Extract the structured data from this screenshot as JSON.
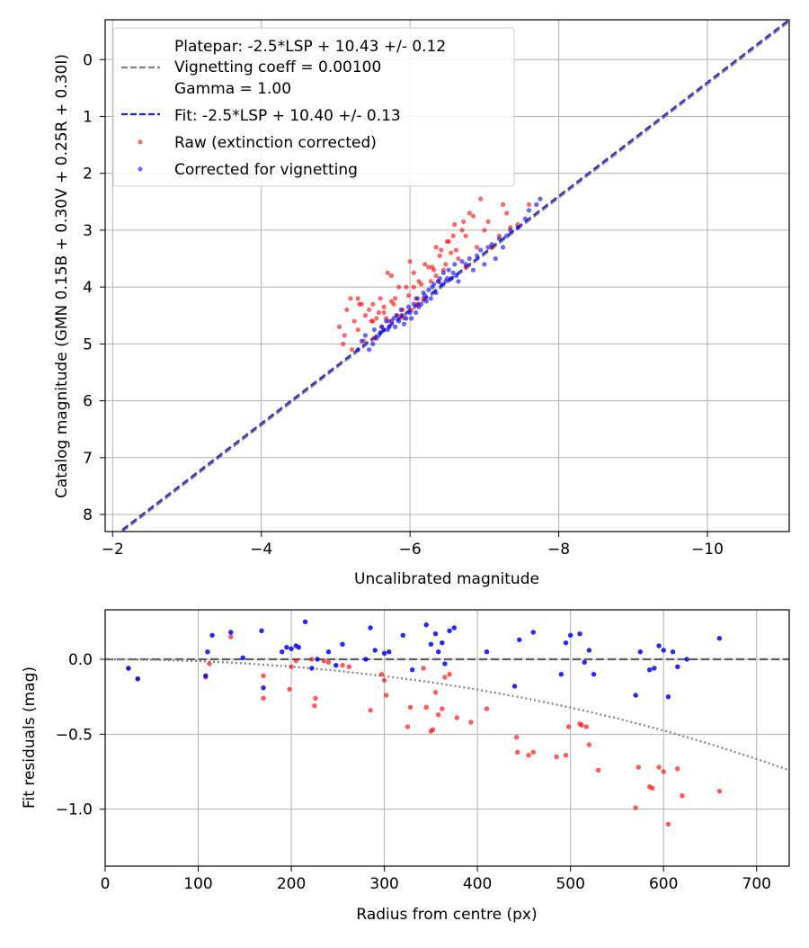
{
  "colors": {
    "raw": "#ff0000",
    "corrected": "#0000ff",
    "fit_line": "#2222cc",
    "platepar_line": "#808080",
    "grid": "#b0b0b0",
    "zero_line": "#404040",
    "trend": "#808080"
  },
  "chart_data": [
    {
      "type": "scatter",
      "title": "",
      "xlabel": "Uncalibrated magnitude",
      "ylabel": "Catalog magnitude (GMN 0.15B + 0.30V + 0.25R + 0.30I)",
      "xlim": [
        -1.9,
        -11.1
      ],
      "ylim": [
        8.3,
        -0.7
      ],
      "x_inverted": true,
      "y_inverted": true,
      "xticks": [
        -2,
        -4,
        -6,
        -8,
        -10
      ],
      "xtick_labels": [
        "−2",
        "−4",
        "−6",
        "−8",
        "−10"
      ],
      "yticks": [
        0,
        1,
        2,
        3,
        4,
        5,
        6,
        7,
        8
      ],
      "ytick_labels": [
        "0",
        "1",
        "2",
        "3",
        "4",
        "5",
        "6",
        "7",
        "8"
      ],
      "grid": true,
      "legend_position": "top-left",
      "legend": [
        {
          "label": "Platepar: -2.5*LSP + 10.43 +/- 0.12",
          "style": "none"
        },
        {
          "label": "Vignetting coeff = 0.00100",
          "style": "dashed-gray"
        },
        {
          "label": "Gamma = 1.00",
          "style": "none"
        },
        {
          "label": "Fit: -2.5*LSP + 10.40 +/- 0.13",
          "style": "dashed-blue"
        },
        {
          "label": "Raw (extinction corrected)",
          "style": "marker-red"
        },
        {
          "label": "Corrected for vignetting",
          "style": "marker-blue"
        }
      ],
      "lines": [
        {
          "name": "Platepar",
          "slope": 1.0,
          "intercept": 10.43
        },
        {
          "name": "Fit",
          "slope": 1.0,
          "intercept": 10.4
        }
      ],
      "series": [
        {
          "name": "Raw (extinction corrected)",
          "x": [
            -5.05,
            -5.1,
            -5.12,
            -5.15,
            -5.2,
            -5.22,
            -5.25,
            -5.3,
            -5.32,
            -5.35,
            -5.38,
            -5.4,
            -5.45,
            -5.48,
            -5.5,
            -5.52,
            -5.55,
            -5.58,
            -5.6,
            -5.62,
            -5.65,
            -5.68,
            -5.7,
            -5.72,
            -5.75,
            -5.78,
            -5.8,
            -5.82,
            -5.85,
            -5.88,
            -5.9,
            -5.92,
            -5.95,
            -5.98,
            -6.0,
            -6.02,
            -6.05,
            -6.08,
            -6.1,
            -6.12,
            -6.15,
            -6.18,
            -6.2,
            -6.25,
            -6.28,
            -6.3,
            -6.32,
            -6.35,
            -6.38,
            -6.4,
            -6.42,
            -6.45,
            -6.48,
            -6.5,
            -6.52,
            -6.55,
            -6.58,
            -6.6,
            -6.62,
            -6.65,
            -6.7,
            -6.72,
            -6.75,
            -6.8,
            -6.85,
            -6.9,
            -6.95,
            -7.0,
            -7.05,
            -7.1,
            -7.2,
            -7.25,
            -7.3,
            -7.35,
            -7.45,
            -7.6,
            -5.3,
            -5.5,
            -5.65,
            -5.75,
            -6.05,
            -6.35,
            -6.75
          ],
          "y": [
            4.7,
            5.0,
            4.85,
            4.4,
            4.2,
            5.1,
            4.6,
            4.75,
            4.3,
            4.3,
            4.95,
            4.5,
            4.4,
            4.6,
            4.3,
            4.9,
            4.55,
            4.45,
            4.2,
            4.7,
            4.45,
            4.55,
            3.75,
            4.6,
            3.8,
            4.3,
            4.2,
            4.5,
            4.0,
            4.5,
            4.4,
            4.55,
            4.0,
            4.15,
            3.55,
            4.4,
            4.0,
            4.2,
            4.3,
            3.9,
            3.95,
            4.2,
            3.6,
            3.65,
            3.9,
            3.65,
            3.7,
            3.8,
            3.9,
            3.45,
            3.35,
            3.7,
            3.6,
            3.2,
            3.2,
            3.4,
            3.1,
            2.9,
            3.35,
            3.5,
            3.0,
            2.85,
            3.1,
            2.7,
            2.75,
            3.3,
            2.45,
            3.0,
            2.85,
            3.3,
            3.1,
            2.55,
            2.7,
            2.95,
            2.9,
            2.55,
            4.2,
            4.6,
            4.35,
            4.25,
            3.75,
            3.3,
            3.65
          ]
        },
        {
          "name": "Corrected for vignetting",
          "x": [
            -5.3,
            -5.35,
            -5.4,
            -5.45,
            -5.5,
            -5.52,
            -5.55,
            -5.58,
            -5.6,
            -5.62,
            -5.65,
            -5.68,
            -5.7,
            -5.72,
            -5.75,
            -5.78,
            -5.8,
            -5.82,
            -5.85,
            -5.88,
            -5.9,
            -5.92,
            -5.95,
            -5.98,
            -6.0,
            -6.02,
            -6.05,
            -6.08,
            -6.1,
            -6.12,
            -6.15,
            -6.18,
            -6.2,
            -6.22,
            -6.25,
            -6.28,
            -6.3,
            -6.32,
            -6.35,
            -6.38,
            -6.4,
            -6.42,
            -6.45,
            -6.48,
            -6.5,
            -6.52,
            -6.55,
            -6.58,
            -6.6,
            -6.62,
            -6.65,
            -6.7,
            -6.75,
            -6.8,
            -6.85,
            -6.9,
            -6.95,
            -7.0,
            -7.05,
            -7.1,
            -7.15,
            -7.2,
            -7.25,
            -7.3,
            -7.35,
            -7.45,
            -7.55,
            -7.6,
            -7.7,
            -7.75
          ],
          "y": [
            5.1,
            4.95,
            4.85,
            5.1,
            5.0,
            4.75,
            4.9,
            4.85,
            4.8,
            4.7,
            4.75,
            4.6,
            4.75,
            4.7,
            4.6,
            4.55,
            4.7,
            4.5,
            4.6,
            4.4,
            4.5,
            4.65,
            4.55,
            4.35,
            4.45,
            4.55,
            4.3,
            4.45,
            4.2,
            4.35,
            4.3,
            4.1,
            4.15,
            4.25,
            4.05,
            4.2,
            4.0,
            3.95,
            4.1,
            3.9,
            3.85,
            3.95,
            3.75,
            3.9,
            3.85,
            3.7,
            3.85,
            3.75,
            3.6,
            3.8,
            3.9,
            3.55,
            3.6,
            3.5,
            3.7,
            3.45,
            3.35,
            3.6,
            3.3,
            3.25,
            3.5,
            3.15,
            3.3,
            3.1,
            3.0,
            2.95,
            2.8,
            2.65,
            2.55,
            2.45
          ]
        }
      ]
    },
    {
      "type": "scatter",
      "title": "",
      "xlabel": "Radius from centre (px)",
      "ylabel": "Fit residuals (mag)",
      "xlim": [
        0,
        735
      ],
      "ylim": [
        -1.38,
        0.33
      ],
      "xticks": [
        0,
        100,
        200,
        300,
        400,
        500,
        600,
        700
      ],
      "xtick_labels": [
        "0",
        "100",
        "200",
        "300",
        "400",
        "500",
        "600",
        "700"
      ],
      "yticks": [
        0.0,
        -0.5,
        -1.0
      ],
      "ytick_labels": [
        "0.0",
        "−0.5",
        "−1.0"
      ],
      "grid": true,
      "reference_line": {
        "name": "zero",
        "y": 0.0,
        "style": "dashed"
      },
      "trend_line": {
        "name": "vignetting model",
        "style": "dotted",
        "x": [
          0,
          50,
          100,
          150,
          200,
          250,
          300,
          350,
          400,
          450,
          500,
          550,
          600,
          650,
          700,
          735
        ],
        "y": [
          0.0,
          -0.003,
          -0.012,
          -0.027,
          -0.049,
          -0.077,
          -0.112,
          -0.153,
          -0.202,
          -0.258,
          -0.322,
          -0.394,
          -0.475,
          -0.565,
          -0.665,
          -0.74
        ]
      },
      "series": [
        {
          "name": "Raw (extinction corrected)",
          "x": [
            25,
            35,
            108,
            112,
            135,
            170,
            170,
            198,
            200,
            205,
            222,
            225,
            226,
            235,
            240,
            255,
            262,
            285,
            297,
            300,
            302,
            325,
            328,
            342,
            345,
            350,
            352,
            355,
            358,
            362,
            365,
            370,
            378,
            393,
            410,
            442,
            443,
            455,
            460,
            485,
            495,
            498,
            510,
            512,
            517,
            520,
            530,
            570,
            573,
            585,
            588,
            595,
            600,
            605,
            615,
            620,
            660
          ],
          "x_note": "",
          "y": [
            -0.06,
            -0.13,
            -0.12,
            -0.03,
            0.15,
            -0.26,
            -0.11,
            -0.2,
            -0.05,
            -0.01,
            0.0,
            -0.31,
            -0.26,
            -0.01,
            -0.02,
            -0.04,
            -0.05,
            -0.34,
            -0.1,
            -0.14,
            -0.24,
            -0.45,
            -0.32,
            -0.06,
            -0.32,
            -0.48,
            -0.47,
            -0.22,
            -0.37,
            -0.33,
            -0.12,
            -0.1,
            -0.39,
            -0.42,
            -0.33,
            -0.52,
            -0.62,
            -0.64,
            -0.62,
            -0.65,
            -0.64,
            -0.45,
            -0.43,
            -0.44,
            -0.45,
            -0.57,
            -0.74,
            -0.99,
            -0.72,
            -0.85,
            -0.86,
            -0.72,
            -0.75,
            -1.1,
            -0.73,
            -0.91,
            -0.88
          ]
        },
        {
          "name": "Corrected for vignetting",
          "x": [
            25,
            35,
            108,
            110,
            115,
            135,
            148,
            168,
            170,
            190,
            195,
            200,
            205,
            208,
            215,
            222,
            228,
            240,
            248,
            255,
            280,
            285,
            290,
            300,
            305,
            320,
            330,
            345,
            350,
            355,
            358,
            362,
            365,
            370,
            375,
            410,
            440,
            445,
            460,
            490,
            495,
            500,
            510,
            515,
            520,
            525,
            570,
            575,
            585,
            590,
            595,
            600,
            605,
            610,
            615,
            625,
            660
          ],
          "y": [
            -0.06,
            -0.13,
            -0.11,
            0.05,
            0.16,
            0.18,
            0.01,
            0.19,
            -0.19,
            0.05,
            0.08,
            0.07,
            0.09,
            0.08,
            0.25,
            -0.06,
            0.0,
            0.05,
            -0.04,
            0.1,
            0.0,
            0.21,
            0.06,
            0.04,
            0.05,
            0.16,
            -0.07,
            0.23,
            0.1,
            0.17,
            0.05,
            0.11,
            -0.03,
            0.19,
            0.21,
            0.05,
            -0.18,
            0.13,
            0.18,
            -0.1,
            0.11,
            0.16,
            0.17,
            -0.02,
            0.06,
            -0.1,
            -0.24,
            0.05,
            -0.07,
            -0.06,
            0.09,
            0.06,
            -0.25,
            0.05,
            -0.05,
            0.0,
            0.14
          ]
        }
      ]
    }
  ]
}
